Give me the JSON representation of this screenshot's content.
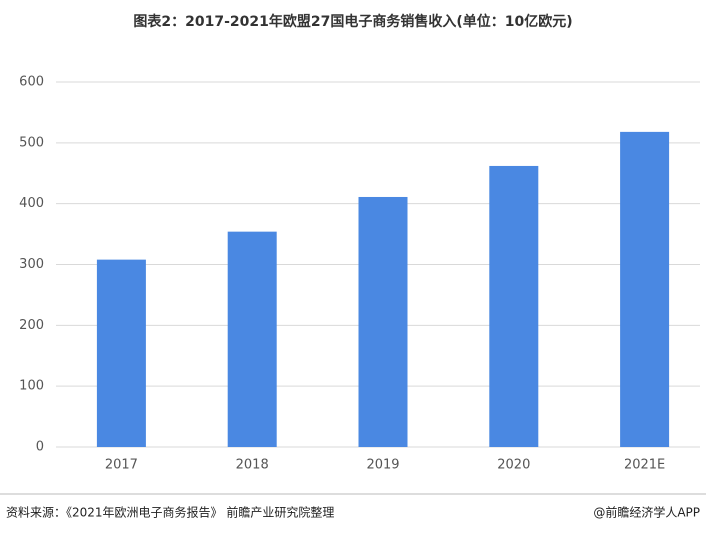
{
  "chart_data": {
    "type": "bar",
    "title": "图表2：2017-2021年欧盟27国电子商务销售收入(单位：10亿欧元)",
    "categories": [
      "2017",
      "2018",
      "2019",
      "2020",
      "2021E"
    ],
    "values": [
      308,
      354,
      411,
      462,
      518
    ],
    "color": "#4a88e2",
    "ylim": [
      0,
      600
    ],
    "yticks": [
      0,
      100,
      200,
      300,
      400,
      500,
      600
    ],
    "grid": true,
    "source": "资料来源：《2021年欧洲电子商务报告》 前瞻产业研究院整理",
    "brand": "@前瞻经济学人APP"
  }
}
